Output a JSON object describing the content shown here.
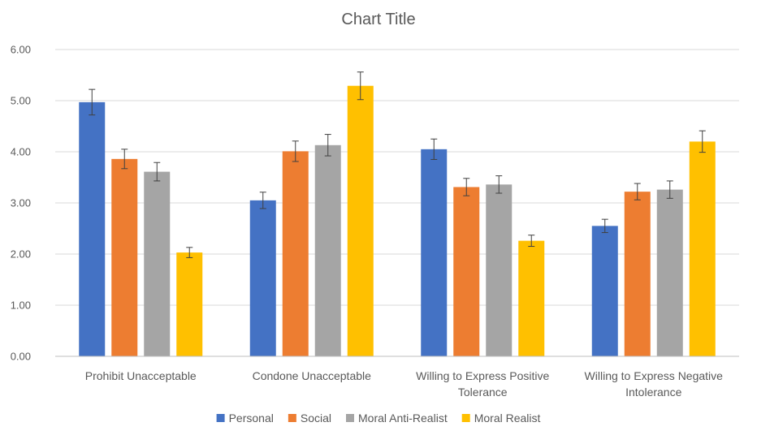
{
  "chart_data": {
    "type": "bar",
    "title": "Chart Title",
    "xlabel": "",
    "ylabel": "",
    "ylim": [
      0,
      6
    ],
    "yticks": [
      "0.00",
      "1.00",
      "2.00",
      "3.00",
      "4.00",
      "5.00",
      "6.00"
    ],
    "grid": true,
    "legend_position": "bottom",
    "categories": [
      [
        "Prohibit Unacceptable"
      ],
      [
        "Condone Unacceptable"
      ],
      [
        "Willing to Express Positive",
        "Tolerance"
      ],
      [
        "Willing to Express Negative",
        "Intolerance"
      ]
    ],
    "series": [
      {
        "name": "Personal",
        "color": "#4472C4",
        "values": [
          4.97,
          3.05,
          4.05,
          2.55
        ],
        "errors": [
          0.25,
          0.16,
          0.2,
          0.13
        ]
      },
      {
        "name": "Social",
        "color": "#ED7D31",
        "values": [
          3.86,
          4.01,
          3.31,
          3.22
        ],
        "errors": [
          0.19,
          0.2,
          0.17,
          0.16
        ]
      },
      {
        "name": "Moral Anti-Realist",
        "color": "#A5A5A5",
        "values": [
          3.61,
          4.13,
          3.36,
          3.26
        ],
        "errors": [
          0.18,
          0.21,
          0.17,
          0.17
        ]
      },
      {
        "name": "Moral Realist",
        "color": "#FFC000",
        "values": [
          2.03,
          5.29,
          2.26,
          4.2
        ],
        "errors": [
          0.1,
          0.27,
          0.11,
          0.21
        ]
      }
    ]
  }
}
